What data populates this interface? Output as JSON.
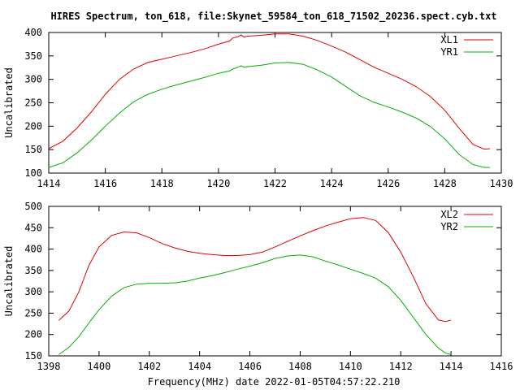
{
  "figure": {
    "title": "HIRES Spectrum, ton_618, file:Skynet_59584_ton_618_71502_20236.spect.cyb.txt",
    "xlabel": "Frequency(MHz) date 2022-01-05T04:57:22.210"
  },
  "chart_data": [
    {
      "type": "line",
      "title": "HIRES Spectrum, ton_618, file:Skynet_59584_ton_618_71502_20236.spect.cyb.txt",
      "xlabel": "",
      "ylabel": "Uncalibrated",
      "xlim": [
        1414,
        1430
      ],
      "ylim": [
        100,
        400
      ],
      "xticks": [
        "1414",
        "1416",
        "1418",
        "1420",
        "1422",
        "1424",
        "1426",
        "1428",
        "1430"
      ],
      "yticks": [
        "100",
        "150",
        "200",
        "250",
        "300",
        "350",
        "400"
      ],
      "legend_position": "top-right",
      "grid": false,
      "series": [
        {
          "name": "XL1",
          "color": "#e00000",
          "points": [
            [
              1414.0,
              152
            ],
            [
              1414.5,
              168
            ],
            [
              1415.0,
              196
            ],
            [
              1415.5,
              230
            ],
            [
              1416.0,
              268
            ],
            [
              1416.5,
              300
            ],
            [
              1417.0,
              322
            ],
            [
              1417.5,
              336
            ],
            [
              1418.0,
              343
            ],
            [
              1418.5,
              350
            ],
            [
              1419.0,
              357
            ],
            [
              1419.5,
              365
            ],
            [
              1420.0,
              375
            ],
            [
              1420.4,
              382
            ],
            [
              1420.5,
              388
            ],
            [
              1420.7,
              391
            ],
            [
              1420.8,
              395
            ],
            [
              1420.9,
              390
            ],
            [
              1421.0,
              392
            ],
            [
              1421.5,
              394
            ],
            [
              1422.0,
              397
            ],
            [
              1422.5,
              397
            ],
            [
              1423.0,
              392
            ],
            [
              1423.5,
              383
            ],
            [
              1424.0,
              371
            ],
            [
              1424.5,
              358
            ],
            [
              1425.0,
              342
            ],
            [
              1425.5,
              326
            ],
            [
              1426.0,
              313
            ],
            [
              1426.5,
              300
            ],
            [
              1427.0,
              284
            ],
            [
              1427.5,
              263
            ],
            [
              1428.0,
              234
            ],
            [
              1428.5,
              196
            ],
            [
              1429.0,
              161
            ],
            [
              1429.4,
              151
            ],
            [
              1429.6,
              152
            ]
          ]
        },
        {
          "name": "YR1",
          "color": "#00b000",
          "points": [
            [
              1414.0,
              112
            ],
            [
              1414.5,
              122
            ],
            [
              1415.0,
              143
            ],
            [
              1415.5,
              170
            ],
            [
              1416.0,
              200
            ],
            [
              1416.5,
              228
            ],
            [
              1417.0,
              252
            ],
            [
              1417.5,
              268
            ],
            [
              1418.0,
              279
            ],
            [
              1418.5,
              288
            ],
            [
              1419.0,
              296
            ],
            [
              1419.5,
              304
            ],
            [
              1420.0,
              313
            ],
            [
              1420.4,
              318
            ],
            [
              1420.5,
              322
            ],
            [
              1420.7,
              326
            ],
            [
              1420.8,
              329
            ],
            [
              1420.9,
              326
            ],
            [
              1421.0,
              327
            ],
            [
              1421.5,
              330
            ],
            [
              1422.0,
              335
            ],
            [
              1422.5,
              336
            ],
            [
              1423.0,
              332
            ],
            [
              1423.5,
              320
            ],
            [
              1424.0,
              305
            ],
            [
              1424.5,
              285
            ],
            [
              1425.0,
              265
            ],
            [
              1425.5,
              251
            ],
            [
              1426.0,
              241
            ],
            [
              1426.5,
              230
            ],
            [
              1427.0,
              217
            ],
            [
              1427.5,
              199
            ],
            [
              1428.0,
              173
            ],
            [
              1428.5,
              140
            ],
            [
              1429.0,
              118
            ],
            [
              1429.4,
              112
            ],
            [
              1429.6,
              112
            ]
          ]
        }
      ]
    },
    {
      "type": "line",
      "title": "",
      "xlabel": "Frequency(MHz) date 2022-01-05T04:57:22.210",
      "ylabel": "Uncalibrated",
      "xlim": [
        1398,
        1416
      ],
      "ylim": [
        150,
        500
      ],
      "xticks": [
        "1398",
        "1400",
        "1402",
        "1404",
        "1406",
        "1408",
        "1410",
        "1412",
        "1414",
        "1416"
      ],
      "yticks": [
        "150",
        "200",
        "250",
        "300",
        "350",
        "400",
        "450",
        "500"
      ],
      "legend_position": "top-right",
      "grid": false,
      "series": [
        {
          "name": "XL2",
          "color": "#e00000",
          "points": [
            [
              1398.4,
              233
            ],
            [
              1398.8,
              255
            ],
            [
              1399.2,
              300
            ],
            [
              1399.6,
              362
            ],
            [
              1400.0,
              405
            ],
            [
              1400.5,
              432
            ],
            [
              1401.0,
              440
            ],
            [
              1401.5,
              438
            ],
            [
              1402.0,
              427
            ],
            [
              1402.5,
              413
            ],
            [
              1403.0,
              403
            ],
            [
              1403.5,
              395
            ],
            [
              1404.0,
              390
            ],
            [
              1404.5,
              387
            ],
            [
              1405.0,
              385
            ],
            [
              1405.5,
              385
            ],
            [
              1406.0,
              387
            ],
            [
              1406.5,
              393
            ],
            [
              1407.0,
              405
            ],
            [
              1407.5,
              418
            ],
            [
              1408.0,
              431
            ],
            [
              1408.5,
              443
            ],
            [
              1409.0,
              454
            ],
            [
              1409.5,
              463
            ],
            [
              1410.0,
              471
            ],
            [
              1410.5,
              474
            ],
            [
              1411.0,
              467
            ],
            [
              1411.5,
              439
            ],
            [
              1412.0,
              393
            ],
            [
              1412.5,
              335
            ],
            [
              1413.0,
              272
            ],
            [
              1413.5,
              234
            ],
            [
              1413.8,
              230
            ],
            [
              1414.0,
              234
            ]
          ]
        },
        {
          "name": "YR2",
          "color": "#00b000",
          "points": [
            [
              1398.4,
              153
            ],
            [
              1398.8,
              170
            ],
            [
              1399.2,
              195
            ],
            [
              1399.6,
              227
            ],
            [
              1400.0,
              258
            ],
            [
              1400.5,
              290
            ],
            [
              1401.0,
              310
            ],
            [
              1401.5,
              318
            ],
            [
              1402.0,
              320
            ],
            [
              1402.5,
              320
            ],
            [
              1403.0,
              321
            ],
            [
              1403.5,
              325
            ],
            [
              1404.0,
              332
            ],
            [
              1404.5,
              338
            ],
            [
              1405.0,
              345
            ],
            [
              1405.5,
              353
            ],
            [
              1406.0,
              360
            ],
            [
              1406.5,
              368
            ],
            [
              1407.0,
              378
            ],
            [
              1407.5,
              384
            ],
            [
              1408.0,
              386
            ],
            [
              1408.5,
              382
            ],
            [
              1409.0,
              372
            ],
            [
              1409.5,
              363
            ],
            [
              1410.0,
              353
            ],
            [
              1410.5,
              343
            ],
            [
              1411.0,
              332
            ],
            [
              1411.5,
              312
            ],
            [
              1412.0,
              280
            ],
            [
              1412.5,
              240
            ],
            [
              1413.0,
              200
            ],
            [
              1413.5,
              168
            ],
            [
              1413.8,
              156
            ],
            [
              1414.0,
              153
            ]
          ]
        }
      ]
    }
  ]
}
